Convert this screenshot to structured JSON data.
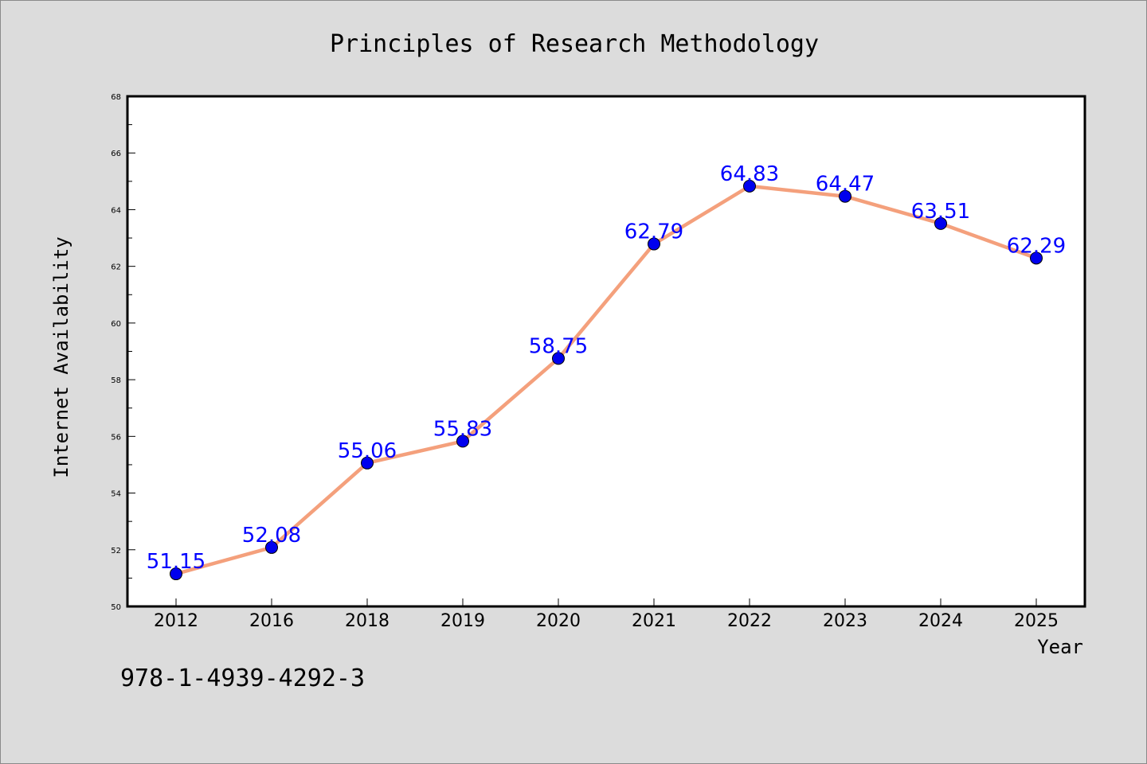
{
  "chart_data": {
    "type": "line",
    "title": "Principles of Research Methodology",
    "xlabel": "Year",
    "ylabel": "Internet Availability",
    "categories": [
      "2012",
      "2016",
      "2018",
      "2019",
      "2020",
      "2021",
      "2022",
      "2023",
      "2024",
      "2025"
    ],
    "series": [
      {
        "values": [
          51.15,
          52.08,
          55.06,
          55.83,
          58.75,
          62.79,
          64.83,
          64.47,
          63.51,
          62.29
        ],
        "line_color": "#f4a07c",
        "marker_color": "#0000ee"
      }
    ],
    "data_labels": [
      "51.15",
      "52.08",
      "55.06",
      "55.83",
      "58.75",
      "62.79",
      "64.83",
      "64.47",
      "63.51",
      "62.29"
    ],
    "ylim": [
      50,
      68
    ],
    "yticks": [
      "50",
      "52",
      "54",
      "56",
      "58",
      "60",
      "62",
      "64",
      "66",
      "68"
    ],
    "grid": false,
    "legend": "none",
    "label_color": "#0000ff"
  },
  "footer": {
    "isbn": "978-1-4939-4292-3"
  }
}
